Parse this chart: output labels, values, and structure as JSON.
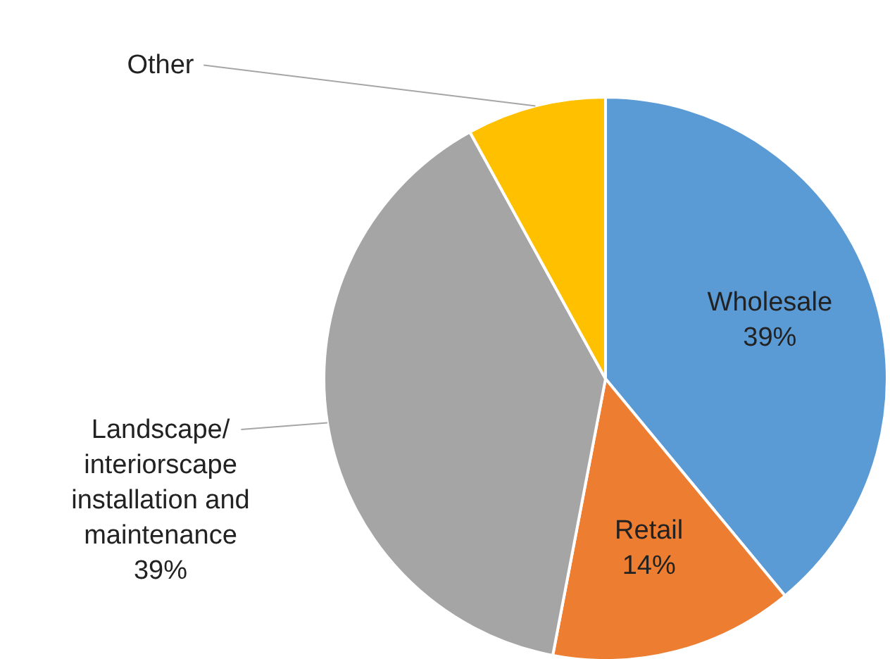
{
  "chart_data": {
    "type": "pie",
    "categories": [
      "Wholesale",
      "Retail",
      "Landscape/interiorscape installation and maintenance",
      "Other"
    ],
    "values": [
      39,
      14,
      39,
      8
    ],
    "value_labels": [
      "39%",
      "14%",
      "39%",
      null
    ],
    "colors": [
      "#5b9bd5",
      "#ed7d31",
      "#a5a5a5",
      "#ffc000"
    ]
  }
}
